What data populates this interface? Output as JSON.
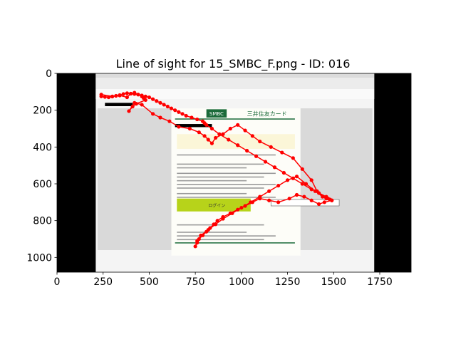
{
  "chart_data": {
    "type": "scatter",
    "title": "Line of sight for 15_SMBC_F.png - ID: 016",
    "xlabel": "",
    "ylabel": "",
    "xlim": [
      0,
      1920
    ],
    "ylim": [
      1080,
      0
    ],
    "x_ticks": [
      0,
      250,
      500,
      750,
      1000,
      1250,
      1500,
      1750
    ],
    "y_ticks": [
      0,
      200,
      400,
      600,
      800,
      1000
    ],
    "grid": false,
    "legend": "none",
    "background_image": {
      "description": "screenshot of an email client showing an SMBC card notice",
      "extent_x": [
        210,
        1720
      ],
      "extent_y": [
        0,
        1080
      ],
      "visible_text": [
        "SMBC",
        "三井住友カード",
        "ログイン"
      ]
    },
    "series": [
      {
        "color": "#ff0000",
        "x": [
          240,
          300,
          340,
          380,
          400,
          420,
          440,
          460,
          470,
          480,
          430,
          410,
          390,
          420,
          460,
          520,
          560,
          610,
          660,
          720,
          770,
          800,
          820,
          840,
          860,
          900,
          940,
          980,
          1020,
          1060,
          1100,
          1160,
          1220,
          1280,
          1330,
          1380,
          1410,
          1440,
          1460,
          1480,
          1490,
          1450,
          1420,
          1380,
          1340,
          1300,
          1260,
          1200,
          1150,
          1100,
          1060,
          1020,
          980,
          940,
          900,
          870,
          850,
          830,
          810,
          790,
          770,
          760,
          750,
          760,
          780,
          820,
          860,
          900,
          950,
          1000,
          1050,
          1100,
          1150,
          1200,
          1250,
          1300,
          1350,
          1400,
          1440,
          1470,
          1490,
          1460,
          1420,
          1380,
          1330,
          1280,
          1230,
          1180,
          1130,
          1080,
          1030,
          980,
          930,
          880,
          840,
          810,
          800,
          790,
          760,
          730,
          700,
          680,
          660,
          640,
          620,
          600,
          580,
          560,
          540,
          520,
          500,
          480,
          460,
          440,
          420,
          400,
          380,
          360,
          340,
          320,
          300,
          280,
          260,
          240
        ],
        "y": [
          115,
          125,
          120,
          130,
          110,
          105,
          115,
          125,
          135,
          145,
          165,
          180,
          205,
          160,
          170,
          220,
          240,
          260,
          290,
          300,
          320,
          340,
          360,
          380,
          350,
          330,
          300,
          280,
          310,
          340,
          370,
          400,
          430,
          460,
          520,
          580,
          640,
          670,
          680,
          685,
          690,
          700,
          710,
          690,
          670,
          660,
          680,
          700,
          690,
          680,
          700,
          720,
          740,
          760,
          780,
          800,
          820,
          840,
          860,
          880,
          900,
          920,
          940,
          910,
          880,
          850,
          820,
          790,
          760,
          730,
          700,
          670,
          640,
          610,
          580,
          560,
          600,
          640,
          670,
          680,
          690,
          670,
          650,
          630,
          600,
          570,
          540,
          510,
          480,
          450,
          420,
          390,
          360,
          330,
          300,
          280,
          270,
          260,
          250,
          240,
          230,
          220,
          210,
          200,
          190,
          180,
          170,
          160,
          150,
          140,
          130,
          125,
          120,
          115,
          112,
          110,
          108,
          112,
          118,
          122,
          126,
          130,
          128,
          125
        ]
      }
    ]
  }
}
